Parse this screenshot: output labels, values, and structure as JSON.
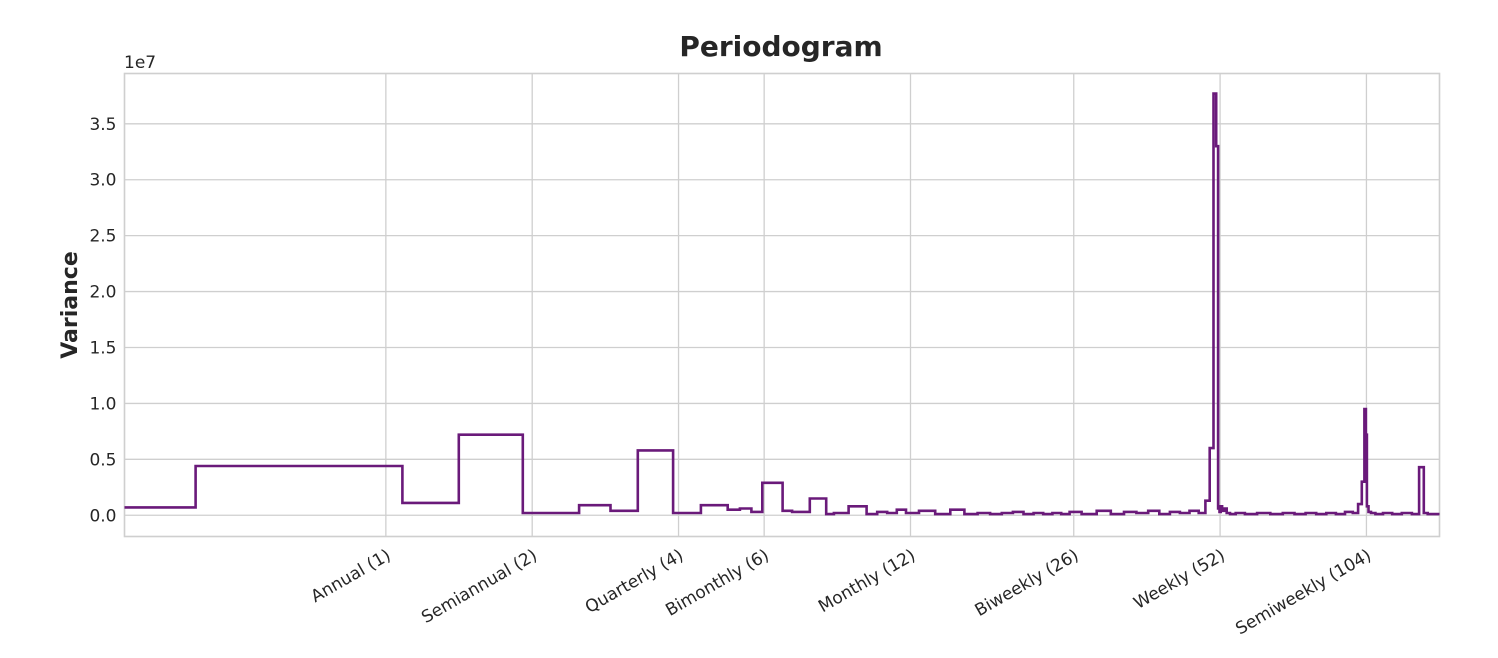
{
  "chart_data": {
    "type": "line",
    "title": "Periodogram",
    "xlabel": "",
    "ylabel": "Variance",
    "y_offset_label": "1e7",
    "x_scale": "log",
    "xlim": [
      0.29,
      147
    ],
    "ylim": [
      -0.19,
      3.95
    ],
    "y_ticks": [
      0,
      0.5,
      1.0,
      1.5,
      2.0,
      2.5,
      3.0,
      3.5
    ],
    "y_tick_labels": [
      "0.0",
      "0.5",
      "1.0",
      "1.5",
      "2.0",
      "2.5",
      "3.0",
      "3.5"
    ],
    "x_ticks": [
      1,
      2,
      4,
      6,
      12,
      26,
      52,
      104
    ],
    "x_tick_labels": [
      "Annual (1)",
      "Semiannual (2)",
      "Quarterly (4)",
      "Bimonthly (6)",
      "Monthly (12)",
      "Biweekly (26)",
      "Weekly (52)",
      "Semiweekly (104)"
    ],
    "grid": true,
    "line_color": "#6a1a7a",
    "series": [
      {
        "step": "mid",
        "x": [
          0.29,
          0.33,
          0.5,
          0.67,
          0.83,
          1,
          1.17,
          1.33,
          1.5,
          1.67,
          1.83,
          2,
          2.2,
          2.4,
          2.6,
          2.8,
          3,
          3.2,
          3.4,
          3.6,
          3.8,
          4,
          4.3,
          4.6,
          4.9,
          5.2,
          5.5,
          5.8,
          6.1,
          6.4,
          6.7,
          7.0,
          7.3,
          7.6,
          7.9,
          8.2,
          8.5,
          8.8,
          9.1,
          9.5,
          10,
          10.5,
          11,
          11.5,
          12,
          13,
          14,
          15,
          16,
          17,
          18,
          19,
          20,
          21,
          22,
          23,
          24,
          25,
          26,
          28,
          30,
          32,
          34,
          36,
          38,
          40,
          42,
          44,
          46,
          48,
          49,
          50,
          50.8,
          51.3,
          51.7,
          52,
          52.3,
          52.7,
          53.3,
          54,
          55,
          57,
          60,
          64,
          68,
          72,
          76,
          80,
          84,
          88,
          92,
          96,
          99,
          101,
          102.5,
          103.5,
          104,
          104.5,
          105.5,
          107,
          110,
          115,
          120,
          126,
          132,
          135,
          138,
          140,
          141,
          142,
          144,
          147
        ],
        "values": [
          0.07,
          0.07,
          0.44,
          0.44,
          0.44,
          0.44,
          0.11,
          0.11,
          0.72,
          0.72,
          0.72,
          0.02,
          0.02,
          0.02,
          0.09,
          0.09,
          0.04,
          0.04,
          0.58,
          0.58,
          0.58,
          0.02,
          0.02,
          0.09,
          0.09,
          0.05,
          0.06,
          0.03,
          0.29,
          0.29,
          0.04,
          0.03,
          0.03,
          0.15,
          0.15,
          0.01,
          0.02,
          0.02,
          0.08,
          0.08,
          0.01,
          0.03,
          0.02,
          0.05,
          0.02,
          0.04,
          0.01,
          0.05,
          0.01,
          0.02,
          0.01,
          0.02,
          0.03,
          0.01,
          0.02,
          0.01,
          0.02,
          0.01,
          0.03,
          0.01,
          0.04,
          0.01,
          0.03,
          0.02,
          0.04,
          0.01,
          0.03,
          0.02,
          0.04,
          0.02,
          0.13,
          0.6,
          3.77,
          3.3,
          0.06,
          0.03,
          0.08,
          0.04,
          0.06,
          0.02,
          0.01,
          0.02,
          0.01,
          0.02,
          0.01,
          0.02,
          0.01,
          0.02,
          0.01,
          0.02,
          0.01,
          0.03,
          0.02,
          0.1,
          0.3,
          0.95,
          0.72,
          0.08,
          0.03,
          0.02,
          0.01,
          0.02,
          0.01,
          0.02,
          0.01,
          0.43,
          0.02,
          0.01,
          0.01,
          0.01,
          0.01,
          0.01
        ]
      }
    ]
  }
}
